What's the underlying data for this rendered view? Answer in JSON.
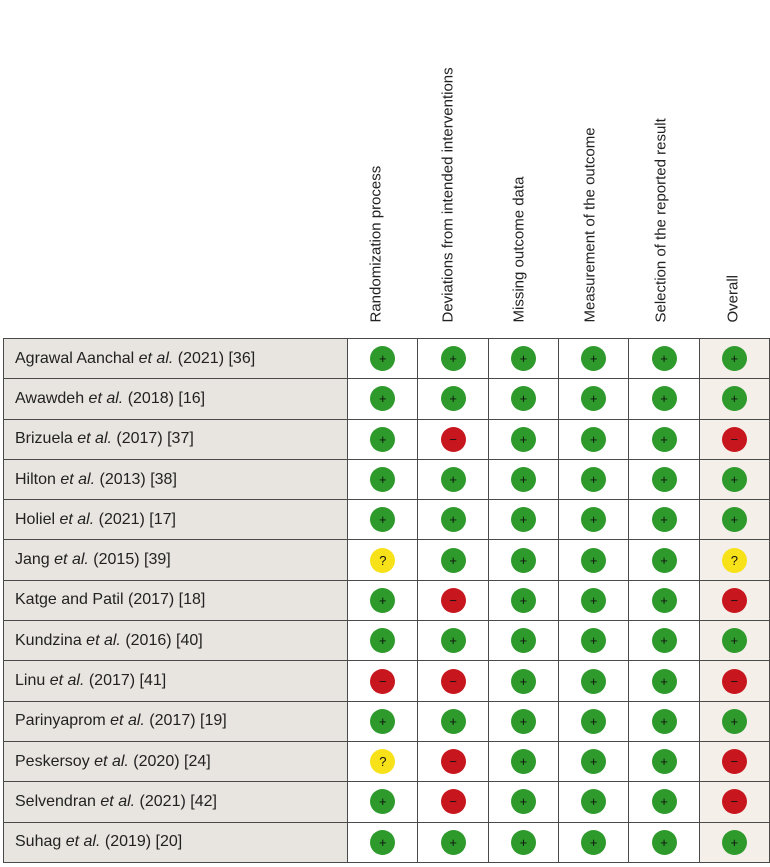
{
  "chart_data": {
    "type": "table",
    "columns": [
      "Randomization process",
      "Deviations from intended interventions",
      "Missing outcome data",
      "Measurement of the outcome",
      "Selection of the reported result",
      "Overall"
    ],
    "symbols": {
      "low": "+",
      "high": "−",
      "some": "?"
    },
    "colors": {
      "low": "#2e9a2c",
      "high": "#c7161d",
      "some": "#f7e21a",
      "study_bg": "#e8e4df",
      "overall_bg": "#f4efe8"
    },
    "rows": [
      {
        "author": "Agrawal Aanchal",
        "etal": "et al.",
        "rest": "(2021) [36]",
        "judgements": [
          "low",
          "low",
          "low",
          "low",
          "low",
          "low"
        ]
      },
      {
        "author": "Awawdeh",
        "etal": "et al.",
        "rest": "(2018) [16]",
        "judgements": [
          "low",
          "low",
          "low",
          "low",
          "low",
          "low"
        ]
      },
      {
        "author": "Brizuela",
        "etal": "et al.",
        "rest": "(2017) [37]",
        "judgements": [
          "low",
          "high",
          "low",
          "low",
          "low",
          "high"
        ]
      },
      {
        "author": "Hilton",
        "etal": "et al.",
        "rest": "(2013) [38]",
        "judgements": [
          "low",
          "low",
          "low",
          "low",
          "low",
          "low"
        ]
      },
      {
        "author": "Holiel",
        "etal": "et al.",
        "rest": "(2021) [17]",
        "judgements": [
          "low",
          "low",
          "low",
          "low",
          "low",
          "low"
        ]
      },
      {
        "author": "Jang",
        "etal": "et al.",
        "rest": "(2015) [39]",
        "judgements": [
          "some",
          "low",
          "low",
          "low",
          "low",
          "some"
        ]
      },
      {
        "author": "Katge and Patil",
        "etal": "",
        "rest": "(2017) [18]",
        "judgements": [
          "low",
          "high",
          "low",
          "low",
          "low",
          "high"
        ]
      },
      {
        "author": "Kundzina",
        "etal": "et al.",
        "rest": "(2016) [40]",
        "judgements": [
          "low",
          "low",
          "low",
          "low",
          "low",
          "low"
        ]
      },
      {
        "author": "Linu",
        "etal": "et al.",
        "rest": "(2017) [41]",
        "judgements": [
          "high",
          "high",
          "low",
          "low",
          "low",
          "high"
        ]
      },
      {
        "author": "Parinyaprom",
        "etal": "et al.",
        "rest": "(2017) [19]",
        "judgements": [
          "low",
          "low",
          "low",
          "low",
          "low",
          "low"
        ]
      },
      {
        "author": "Peskersoy",
        "etal": "et al.",
        "rest": "(2020) [24]",
        "judgements": [
          "some",
          "high",
          "low",
          "low",
          "low",
          "high"
        ]
      },
      {
        "author": "Selvendran",
        "etal": "et al.",
        "rest": "(2021) [42]",
        "judgements": [
          "low",
          "high",
          "low",
          "low",
          "low",
          "high"
        ]
      },
      {
        "author": "Suhag",
        "etal": "et al.",
        "rest": "(2019) [20]",
        "judgements": [
          "low",
          "low",
          "low",
          "low",
          "low",
          "low"
        ]
      }
    ]
  }
}
